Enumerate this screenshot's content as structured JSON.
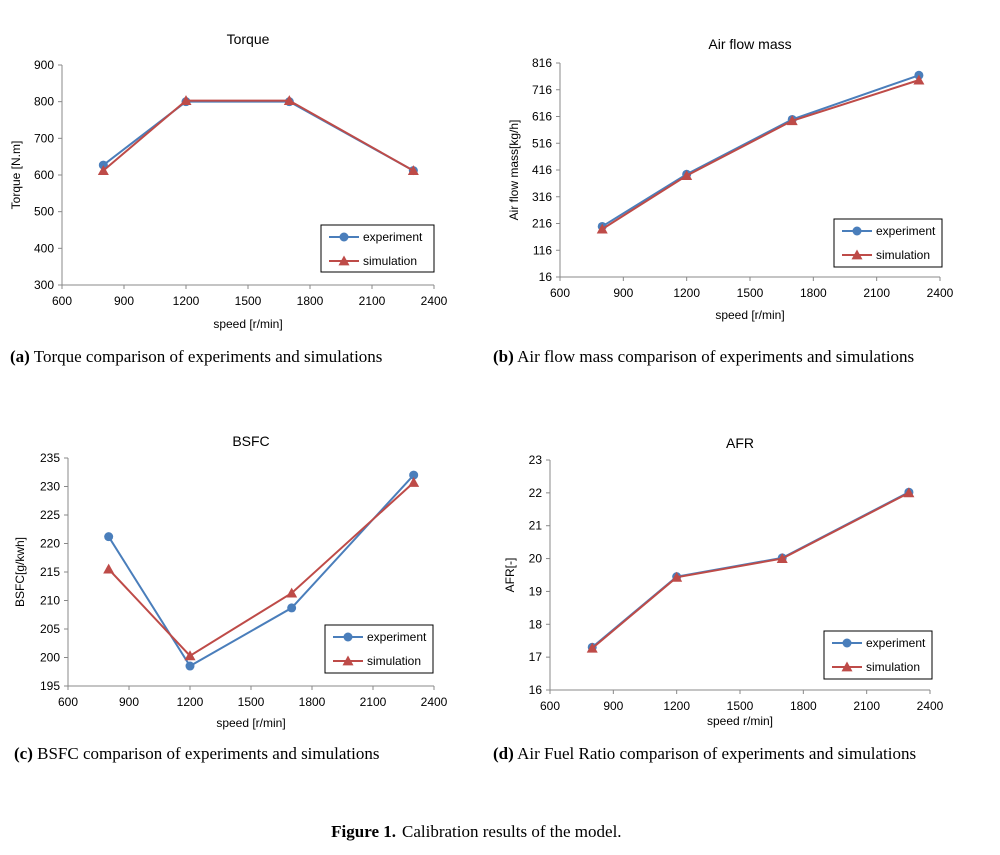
{
  "chart_data": [
    {
      "type": "line",
      "title": "Torque",
      "xlabel": "speed [r/min]",
      "ylabel": "Torque [N.m]",
      "xlim": [
        600,
        2400
      ],
      "ylim": [
        300,
        900
      ],
      "xticks": [
        600,
        900,
        1200,
        1500,
        1800,
        2100,
        2400
      ],
      "yticks": [
        300,
        400,
        500,
        600,
        700,
        800,
        900
      ],
      "legend": "bottom-right",
      "x": [
        800,
        1200,
        1700,
        2300
      ],
      "series": [
        {
          "name": "experiment",
          "marker": "circle",
          "color": "#4a7ebb",
          "values": [
            627,
            800,
            800,
            612
          ]
        },
        {
          "name": "simulation",
          "marker": "triangle",
          "color": "#be4b48",
          "values": [
            612,
            803,
            803,
            612
          ]
        }
      ],
      "caption_label": "(a)",
      "caption_text": "Torque comparison of experiments and simulations"
    },
    {
      "type": "line",
      "title": "Air flow mass",
      "xlabel": "speed [r/min]",
      "ylabel": "Air flow mass[kg/h]",
      "xlim": [
        600,
        2400
      ],
      "ylim": [
        16,
        816
      ],
      "xticks": [
        600,
        900,
        1200,
        1500,
        1800,
        2100,
        2400
      ],
      "yticks": [
        16,
        116,
        216,
        316,
        416,
        516,
        616,
        716,
        816
      ],
      "legend": "bottom-right",
      "x": [
        800,
        1200,
        1700,
        2300
      ],
      "series": [
        {
          "name": "experiment",
          "marker": "circle",
          "color": "#4a7ebb",
          "values": [
            205,
            400,
            605,
            770
          ]
        },
        {
          "name": "simulation",
          "marker": "triangle",
          "color": "#be4b48",
          "values": [
            195,
            395,
            600,
            752
          ]
        }
      ],
      "caption_label": "(b)",
      "caption_text": "Air flow mass comparison of experiments and simulations"
    },
    {
      "type": "line",
      "title": "BSFC",
      "xlabel": "speed [r/min]",
      "ylabel": "BSFC[g/kwh]",
      "xlim": [
        600,
        2400
      ],
      "ylim": [
        195,
        235
      ],
      "xticks": [
        600,
        900,
        1200,
        1500,
        1800,
        2100,
        2400
      ],
      "yticks": [
        195,
        200,
        205,
        210,
        215,
        220,
        225,
        230,
        235
      ],
      "legend": "bottom-right",
      "x": [
        800,
        1200,
        1700,
        2300
      ],
      "series": [
        {
          "name": "experiment",
          "marker": "circle",
          "color": "#4a7ebb",
          "values": [
            221.2,
            198.5,
            208.7,
            232.0
          ]
        },
        {
          "name": "simulation",
          "marker": "triangle",
          "color": "#be4b48",
          "values": [
            215.5,
            200.3,
            211.3,
            230.7
          ]
        }
      ],
      "caption_label": "(c)",
      "caption_text": "BSFC comparison of experiments and simulations"
    },
    {
      "type": "line",
      "title": "AFR",
      "xlabel": "speed r/min]",
      "ylabel": "AFR[-]",
      "xlim": [
        600,
        2400
      ],
      "ylim": [
        16,
        23
      ],
      "xticks": [
        600,
        900,
        1200,
        1500,
        1800,
        2100,
        2400
      ],
      "yticks": [
        16,
        17,
        18,
        19,
        20,
        21,
        22,
        23
      ],
      "legend": "bottom-right",
      "x": [
        800,
        1200,
        1700,
        2300
      ],
      "series": [
        {
          "name": "experiment",
          "marker": "circle",
          "color": "#4a7ebb",
          "values": [
            17.3,
            19.45,
            20.02,
            22.02
          ]
        },
        {
          "name": "simulation",
          "marker": "triangle",
          "color": "#be4b48",
          "values": [
            17.27,
            19.43,
            20.0,
            22.0
          ]
        }
      ],
      "caption_label": "(d)",
      "caption_text": "Air Fuel Ratio comparison of experiments and simulations"
    }
  ],
  "figure_caption": {
    "label": "Figure 1.",
    "text": "Calibration results of the model."
  }
}
